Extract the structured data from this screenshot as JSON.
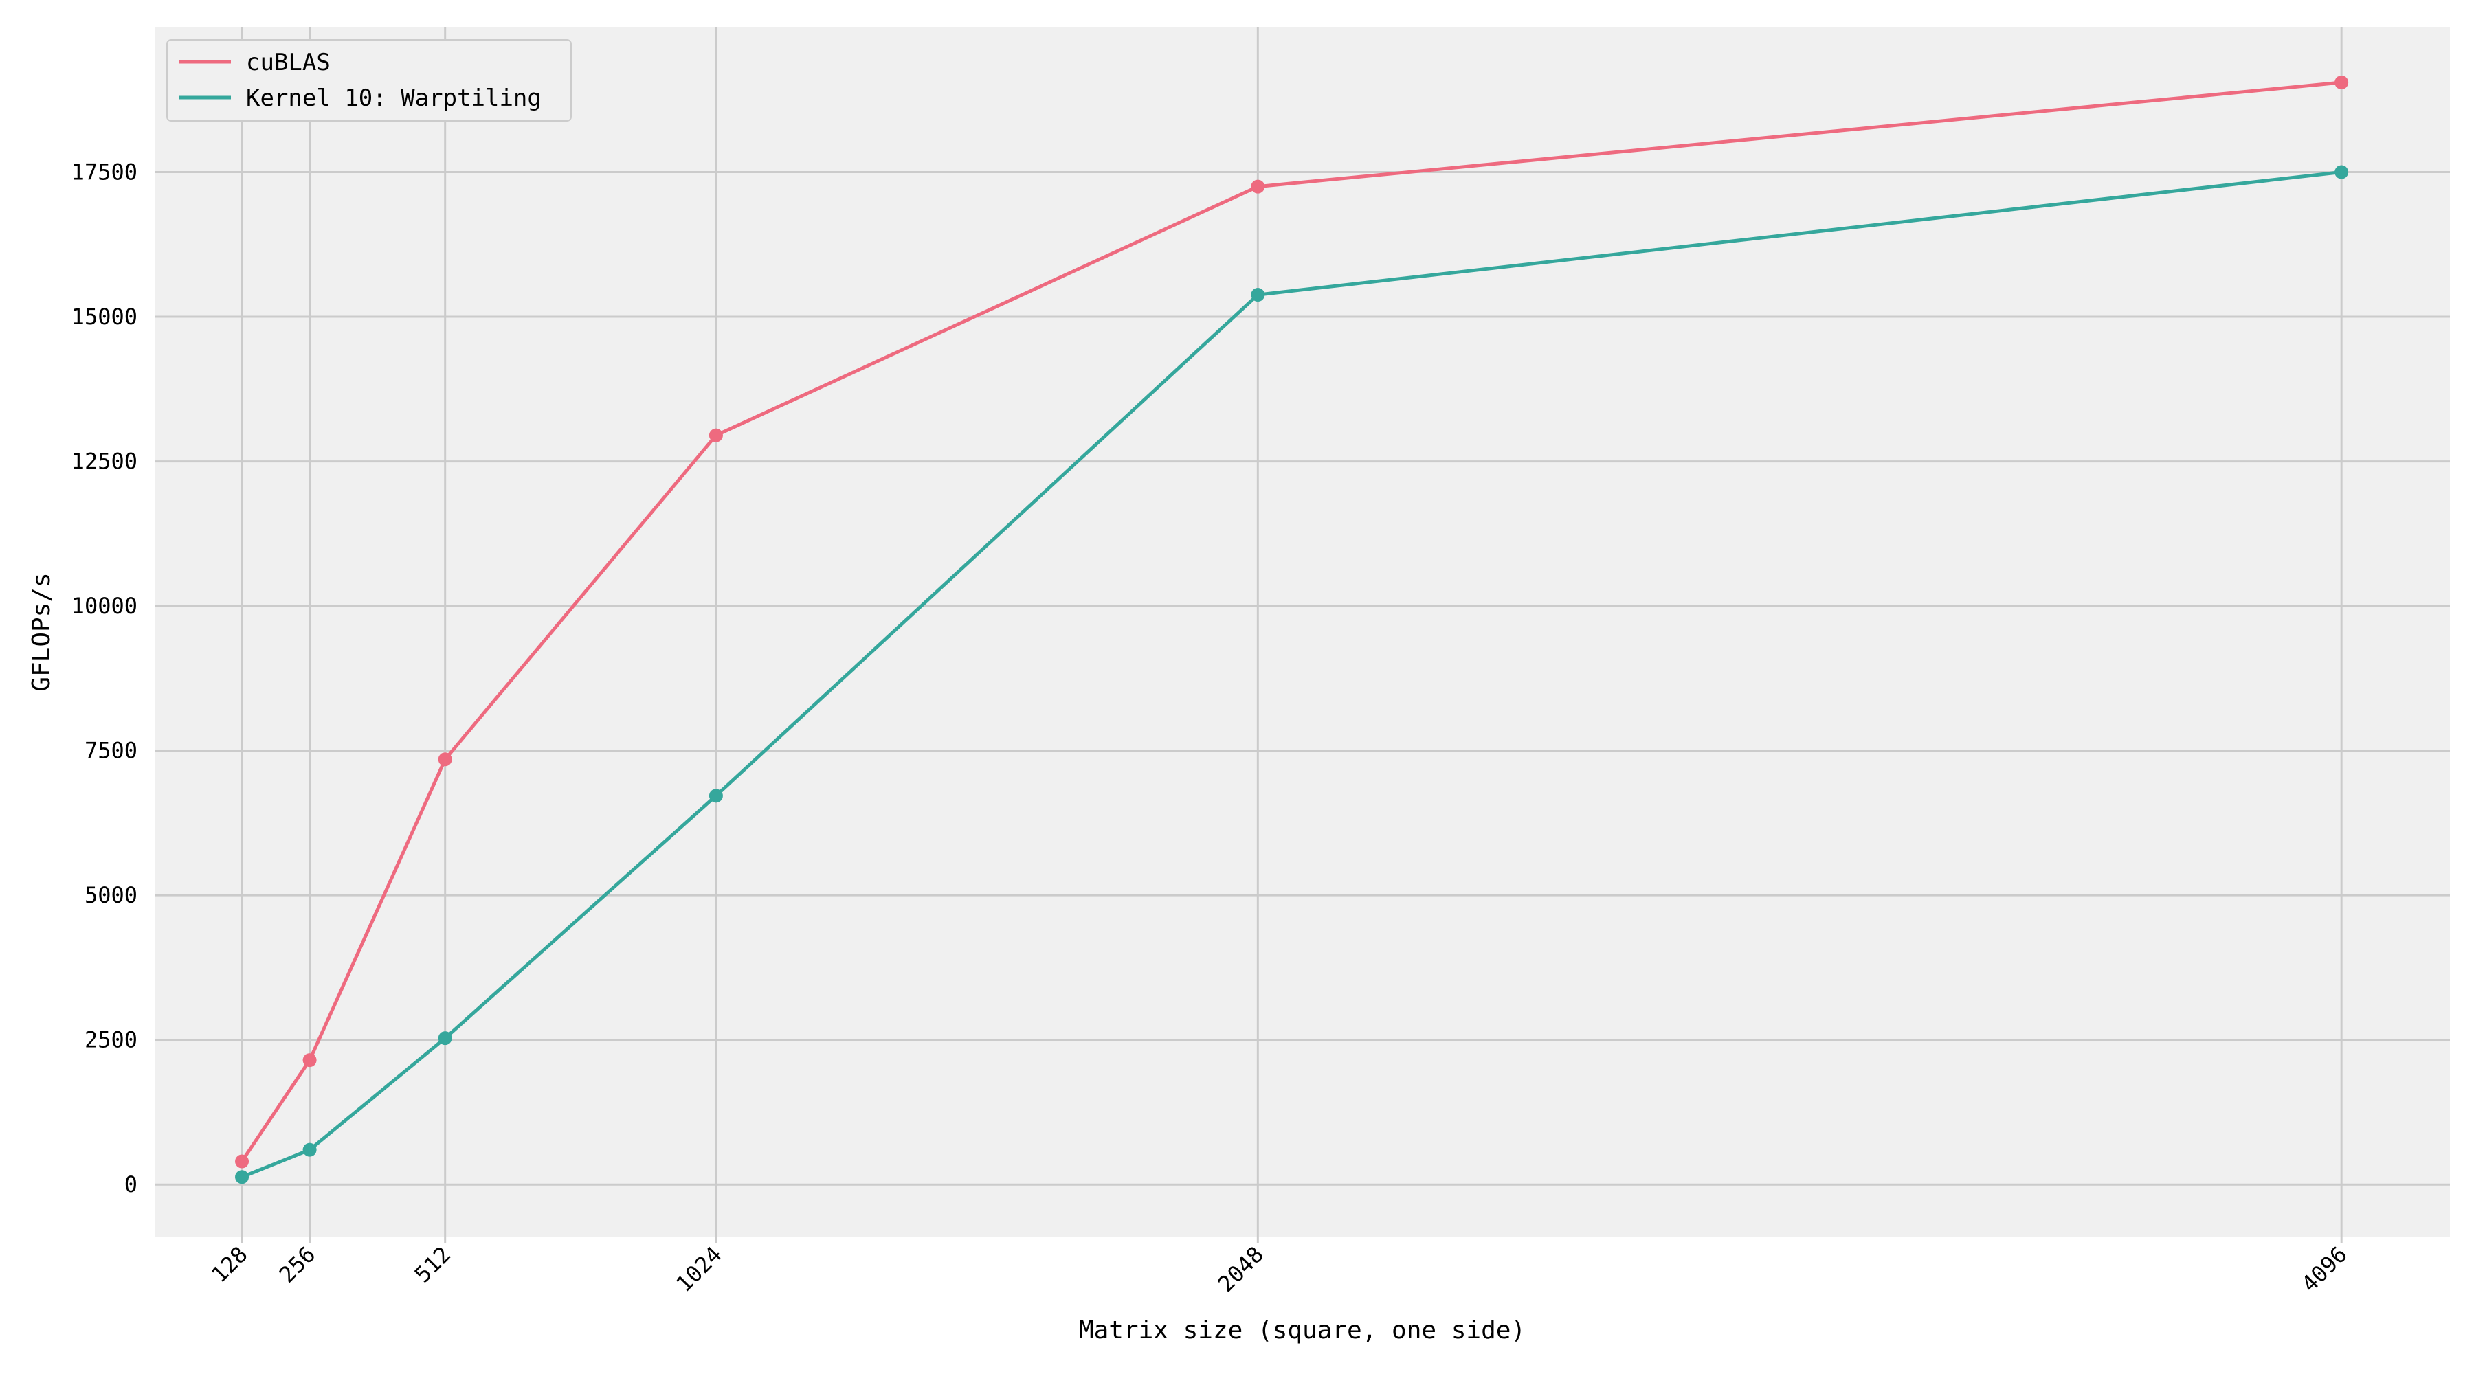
{
  "chart_data": {
    "type": "line",
    "title": "",
    "xlabel": "Matrix size (square, one side)",
    "ylabel": "GFLOPs/s",
    "x": [
      128,
      256,
      512,
      1024,
      2048,
      4096
    ],
    "x_tick_labels": [
      "128",
      "256",
      "512",
      "1024",
      "2048",
      "4096"
    ],
    "y_ticks": [
      0,
      2500,
      5000,
      7500,
      10000,
      12500,
      15000,
      17500
    ],
    "y_tick_labels": [
      "0",
      "2500",
      "5000",
      "7500",
      "10000",
      "12500",
      "15000",
      "17500"
    ],
    "xlim": [
      -37,
      4301
    ],
    "ylim": [
      -900,
      20000
    ],
    "grid": true,
    "legend_position": "top-left",
    "series": [
      {
        "name": "cuBLAS",
        "color": "#EE6A7F",
        "values": [
          400,
          2150,
          7350,
          12950,
          17250,
          19050
        ]
      },
      {
        "name": "Kernel 10: Warptiling",
        "color": "#35A79C",
        "values": [
          130,
          600,
          2530,
          6720,
          15380,
          17500
        ]
      }
    ]
  }
}
